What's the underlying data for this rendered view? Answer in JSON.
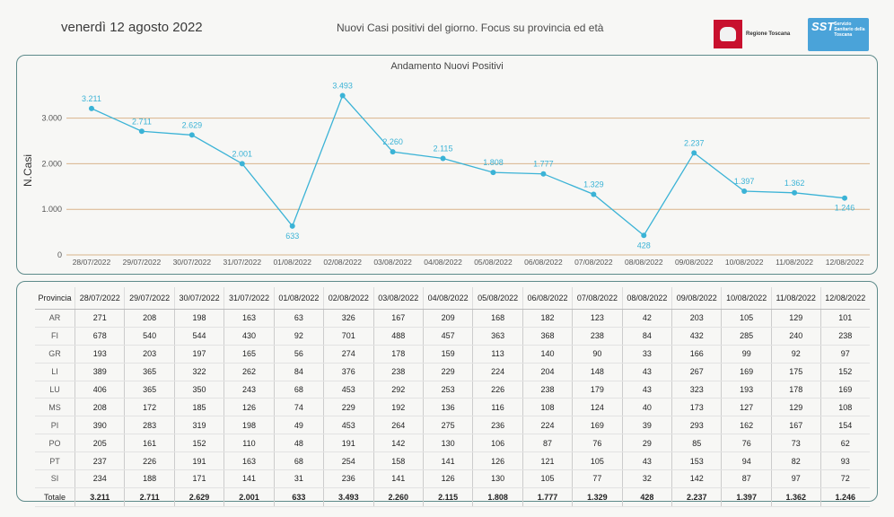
{
  "header": {
    "date": "venerdì 12 agosto 2022",
    "subtitle": "Nuovi Casi positivi del giorno. Focus su provincia ed età",
    "logo_regione": "Regione Toscana",
    "logo_sst_mark": "SST",
    "logo_sst_text": "Servizio Sanitario della Toscana"
  },
  "chart_data": {
    "type": "line",
    "title": "Andamento Nuovi Positivi",
    "xlabel": "",
    "ylabel": "N.Casi",
    "categories": [
      "28/07/2022",
      "29/07/2022",
      "30/07/2022",
      "31/07/2022",
      "01/08/2022",
      "02/08/2022",
      "03/08/2022",
      "04/08/2022",
      "05/08/2022",
      "06/08/2022",
      "07/08/2022",
      "08/08/2022",
      "09/08/2022",
      "10/08/2022",
      "11/08/2022",
      "12/08/2022"
    ],
    "values": [
      3211,
      2711,
      2629,
      2001,
      633,
      3493,
      2260,
      2115,
      1808,
      1777,
      1329,
      428,
      2237,
      1397,
      1362,
      1246
    ],
    "data_labels": [
      "3.211",
      "2.711",
      "2.629",
      "2.001",
      "633",
      "3.493",
      "2.260",
      "2.115",
      "1.808",
      "1.777",
      "1.329",
      "428",
      "2.237",
      "1.397",
      "1.362",
      "1.246"
    ],
    "yticks": [
      0,
      1000,
      2000,
      3000
    ],
    "ytick_labels": [
      "0",
      "1.000",
      "2.000",
      "3.000"
    ],
    "ylim": [
      0,
      3700
    ],
    "grid": true,
    "color": "#3bb3d6",
    "grid_color": "#d9b48a"
  },
  "table": {
    "corner": "Provincia",
    "headers": [
      "28/07/2022",
      "29/07/2022",
      "30/07/2022",
      "31/07/2022",
      "01/08/2022",
      "02/08/2022",
      "03/08/2022",
      "04/08/2022",
      "05/08/2022",
      "06/08/2022",
      "07/08/2022",
      "08/08/2022",
      "09/08/2022",
      "10/08/2022",
      "11/08/2022",
      "12/08/2022"
    ],
    "rows": [
      {
        "label": "AR",
        "cells": [
          "271",
          "208",
          "198",
          "163",
          "63",
          "326",
          "167",
          "209",
          "168",
          "182",
          "123",
          "42",
          "203",
          "105",
          "129",
          "101"
        ]
      },
      {
        "label": "FI",
        "cells": [
          "678",
          "540",
          "544",
          "430",
          "92",
          "701",
          "488",
          "457",
          "363",
          "368",
          "238",
          "84",
          "432",
          "285",
          "240",
          "238"
        ]
      },
      {
        "label": "GR",
        "cells": [
          "193",
          "203",
          "197",
          "165",
          "56",
          "274",
          "178",
          "159",
          "113",
          "140",
          "90",
          "33",
          "166",
          "99",
          "92",
          "97"
        ]
      },
      {
        "label": "LI",
        "cells": [
          "389",
          "365",
          "322",
          "262",
          "84",
          "376",
          "238",
          "229",
          "224",
          "204",
          "148",
          "43",
          "267",
          "169",
          "175",
          "152"
        ]
      },
      {
        "label": "LU",
        "cells": [
          "406",
          "365",
          "350",
          "243",
          "68",
          "453",
          "292",
          "253",
          "226",
          "238",
          "179",
          "43",
          "323",
          "193",
          "178",
          "169"
        ]
      },
      {
        "label": "MS",
        "cells": [
          "208",
          "172",
          "185",
          "126",
          "74",
          "229",
          "192",
          "136",
          "116",
          "108",
          "124",
          "40",
          "173",
          "127",
          "129",
          "108"
        ]
      },
      {
        "label": "PI",
        "cells": [
          "390",
          "283",
          "319",
          "198",
          "49",
          "453",
          "264",
          "275",
          "236",
          "224",
          "169",
          "39",
          "293",
          "162",
          "167",
          "154"
        ]
      },
      {
        "label": "PO",
        "cells": [
          "205",
          "161",
          "152",
          "110",
          "48",
          "191",
          "142",
          "130",
          "106",
          "87",
          "76",
          "29",
          "85",
          "76",
          "73",
          "62"
        ]
      },
      {
        "label": "PT",
        "cells": [
          "237",
          "226",
          "191",
          "163",
          "68",
          "254",
          "158",
          "141",
          "126",
          "121",
          "105",
          "43",
          "153",
          "94",
          "82",
          "93"
        ]
      },
      {
        "label": "SI",
        "cells": [
          "234",
          "188",
          "171",
          "141",
          "31",
          "236",
          "141",
          "126",
          "130",
          "105",
          "77",
          "32",
          "142",
          "87",
          "97",
          "72"
        ]
      }
    ],
    "total": {
      "label": "Totale",
      "cells": [
        "3.211",
        "2.711",
        "2.629",
        "2.001",
        "633",
        "3.493",
        "2.260",
        "2.115",
        "1.808",
        "1.777",
        "1.329",
        "428",
        "2.237",
        "1.397",
        "1.362",
        "1.246"
      ]
    }
  }
}
